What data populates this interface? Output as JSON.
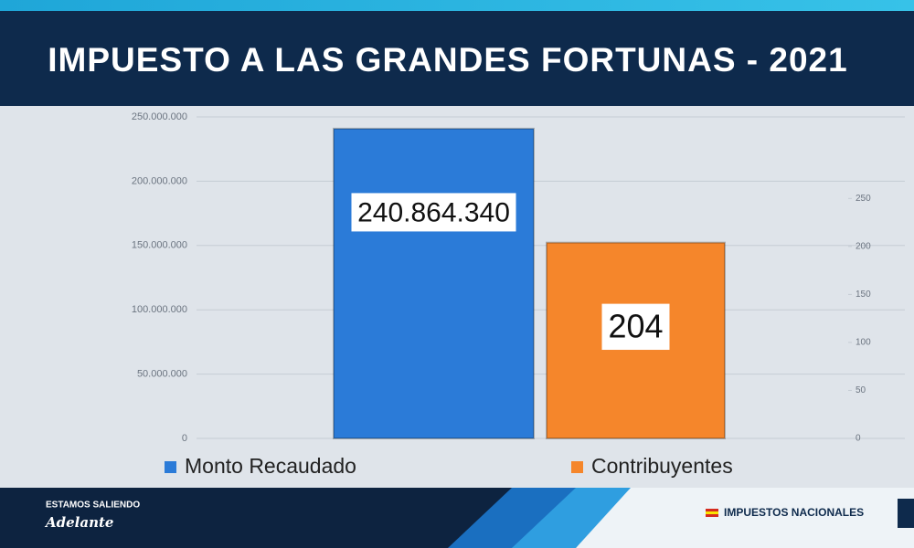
{
  "chart_data": {
    "type": "bar",
    "title": "IMPUESTO A LAS GRANDES FORTUNAS - 2021",
    "series": [
      {
        "name": "Monto Recaudado",
        "color": "#2b7bd8",
        "values": [
          240864340
        ],
        "value_labels": [
          "240.864.340"
        ]
      },
      {
        "name": "Contribuyentes",
        "color": "#f5862b",
        "values": [
          204
        ],
        "axis": "y2"
      }
    ],
    "ylim": [
      0,
      250000000
    ],
    "yticks": [
      0,
      {
        "value": 50000000,
        "label": "50.000.000"
      },
      {
        "value": 100000000,
        "label": "100.000.000"
      },
      {
        "value": 150000000,
        "label": "150.000.000"
      },
      {
        "value": 200000000,
        "label": "200.000.000"
      },
      {
        "value": 250000000,
        "label": "250.000.000"
      }
    ],
    "y2lim": [
      0,
      335
    ],
    "y2ticks": [
      0,
      50,
      100,
      150,
      200,
      250
    ],
    "grid": true,
    "legend": "bottom"
  },
  "footer": {
    "slogan_top": "ESTAMOS SALIENDO",
    "slogan_bottom": "Adelante",
    "brand": "IMPUESTOS NACIONALES"
  }
}
